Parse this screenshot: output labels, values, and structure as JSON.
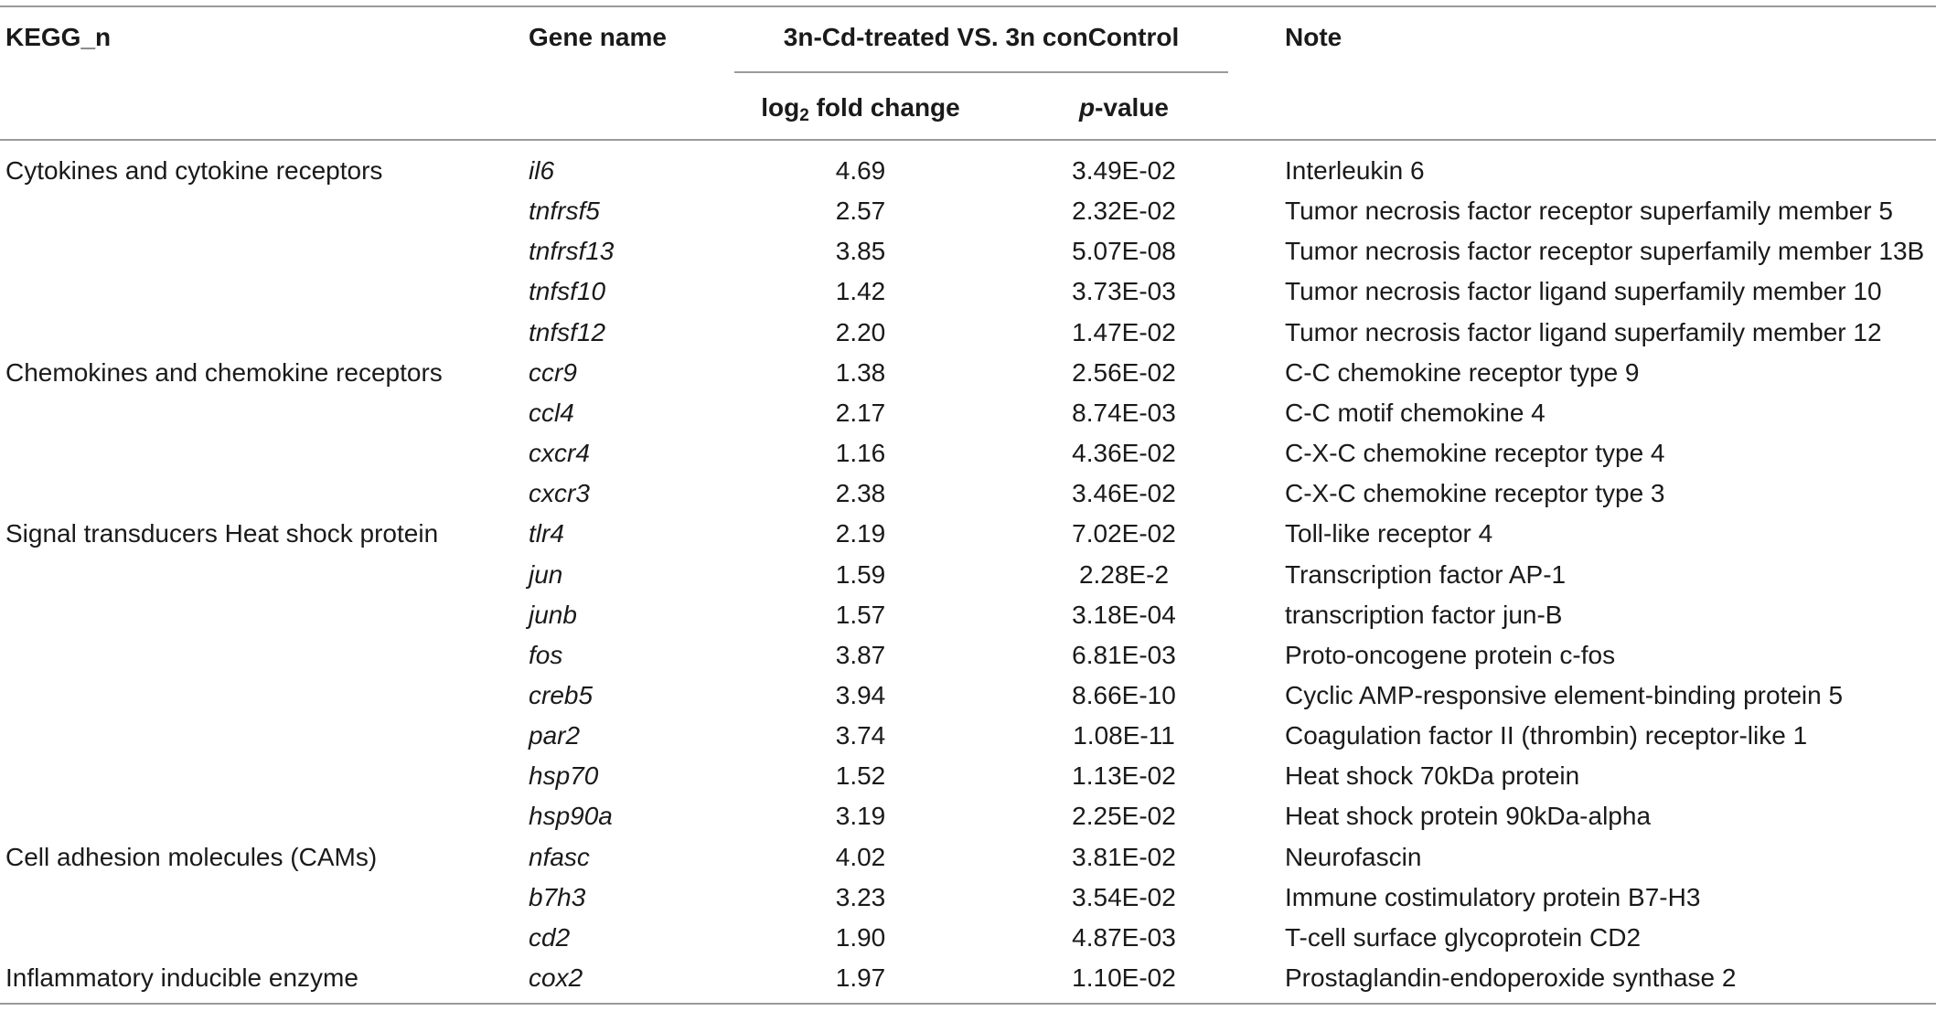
{
  "headers": {
    "kegg": "KEGG_n",
    "gene": "Gene name",
    "comparison": "3n-Cd-treated VS. 3n conControl",
    "log_prefix": "log",
    "log_subscript": "2",
    "log_suffix": " fold change",
    "pvalue_italic": "p",
    "pvalue_suffix": "-value",
    "note": "Note"
  },
  "rows": [
    {
      "kegg": "Cytokines and cytokine receptors",
      "gene": "il6",
      "fc": "4.69",
      "p": "3.49E-02",
      "note": "Interleukin 6"
    },
    {
      "kegg": "",
      "gene": "tnfrsf5",
      "fc": "2.57",
      "p": "2.32E-02",
      "note": "Tumor necrosis factor receptor superfamily member 5"
    },
    {
      "kegg": "",
      "gene": "tnfrsf13",
      "fc": "3.85",
      "p": "5.07E-08",
      "note": "Tumor necrosis factor receptor superfamily member 13B"
    },
    {
      "kegg": "",
      "gene": "tnfsf10",
      "fc": "1.42",
      "p": "3.73E-03",
      "note": "Tumor necrosis factor ligand superfamily member 10"
    },
    {
      "kegg": "",
      "gene": "tnfsf12",
      "fc": "2.20",
      "p": "1.47E-02",
      "note": "Tumor necrosis factor ligand superfamily member 12"
    },
    {
      "kegg": "Chemokines and chemokine receptors",
      "gene": "ccr9",
      "fc": "1.38",
      "p": "2.56E-02",
      "note": "C-C chemokine receptor type 9"
    },
    {
      "kegg": "",
      "gene": "ccl4",
      "fc": "2.17",
      "p": "8.74E-03",
      "note": "C-C motif chemokine 4"
    },
    {
      "kegg": "",
      "gene": "cxcr4",
      "fc": "1.16",
      "p": "4.36E-02",
      "note": "C-X-C chemokine receptor type 4"
    },
    {
      "kegg": "",
      "gene": "cxcr3",
      "fc": "2.38",
      "p": "3.46E-02",
      "note": "C-X-C chemokine receptor type 3"
    },
    {
      "kegg": "Signal transducers Heat shock protein",
      "gene": "tlr4",
      "fc": "2.19",
      "p": "7.02E-02",
      "note": "Toll-like receptor 4"
    },
    {
      "kegg": "",
      "gene": "jun",
      "fc": "1.59",
      "p": "2.28E-2",
      "note": "Transcription factor AP-1"
    },
    {
      "kegg": "",
      "gene": "junb",
      "fc": "1.57",
      "p": "3.18E-04",
      "note": "transcription factor jun-B"
    },
    {
      "kegg": "",
      "gene": "fos",
      "fc": "3.87",
      "p": "6.81E-03",
      "note": "Proto-oncogene protein c-fos"
    },
    {
      "kegg": "",
      "gene": "creb5",
      "fc": "3.94",
      "p": "8.66E-10",
      "note": "Cyclic AMP-responsive element-binding protein 5"
    },
    {
      "kegg": "",
      "gene": "par2",
      "fc": "3.74",
      "p": "1.08E-11",
      "note": "Coagulation factor II (thrombin) receptor-like 1"
    },
    {
      "kegg": "",
      "gene": "hsp70",
      "fc": "1.52",
      "p": "1.13E-02",
      "note": "Heat shock 70kDa protein"
    },
    {
      "kegg": "",
      "gene": "hsp90a",
      "fc": "3.19",
      "p": "2.25E-02",
      "note": "Heat shock protein 90kDa-alpha"
    },
    {
      "kegg": "Cell adhesion molecules (CAMs)",
      "gene": "nfasc",
      "fc": "4.02",
      "p": "3.81E-02",
      "note": "Neurofascin"
    },
    {
      "kegg": "",
      "gene": "b7h3",
      "fc": "3.23",
      "p": "3.54E-02",
      "note": "Immune costimulatory protein B7-H3"
    },
    {
      "kegg": "",
      "gene": "cd2",
      "fc": "1.90",
      "p": "4.87E-03",
      "note": "T-cell surface glycoprotein CD2"
    },
    {
      "kegg": "Inflammatory inducible enzyme",
      "gene": "cox2",
      "fc": "1.97",
      "p": "1.10E-02",
      "note": "Prostaglandin-endoperoxide synthase 2"
    }
  ]
}
